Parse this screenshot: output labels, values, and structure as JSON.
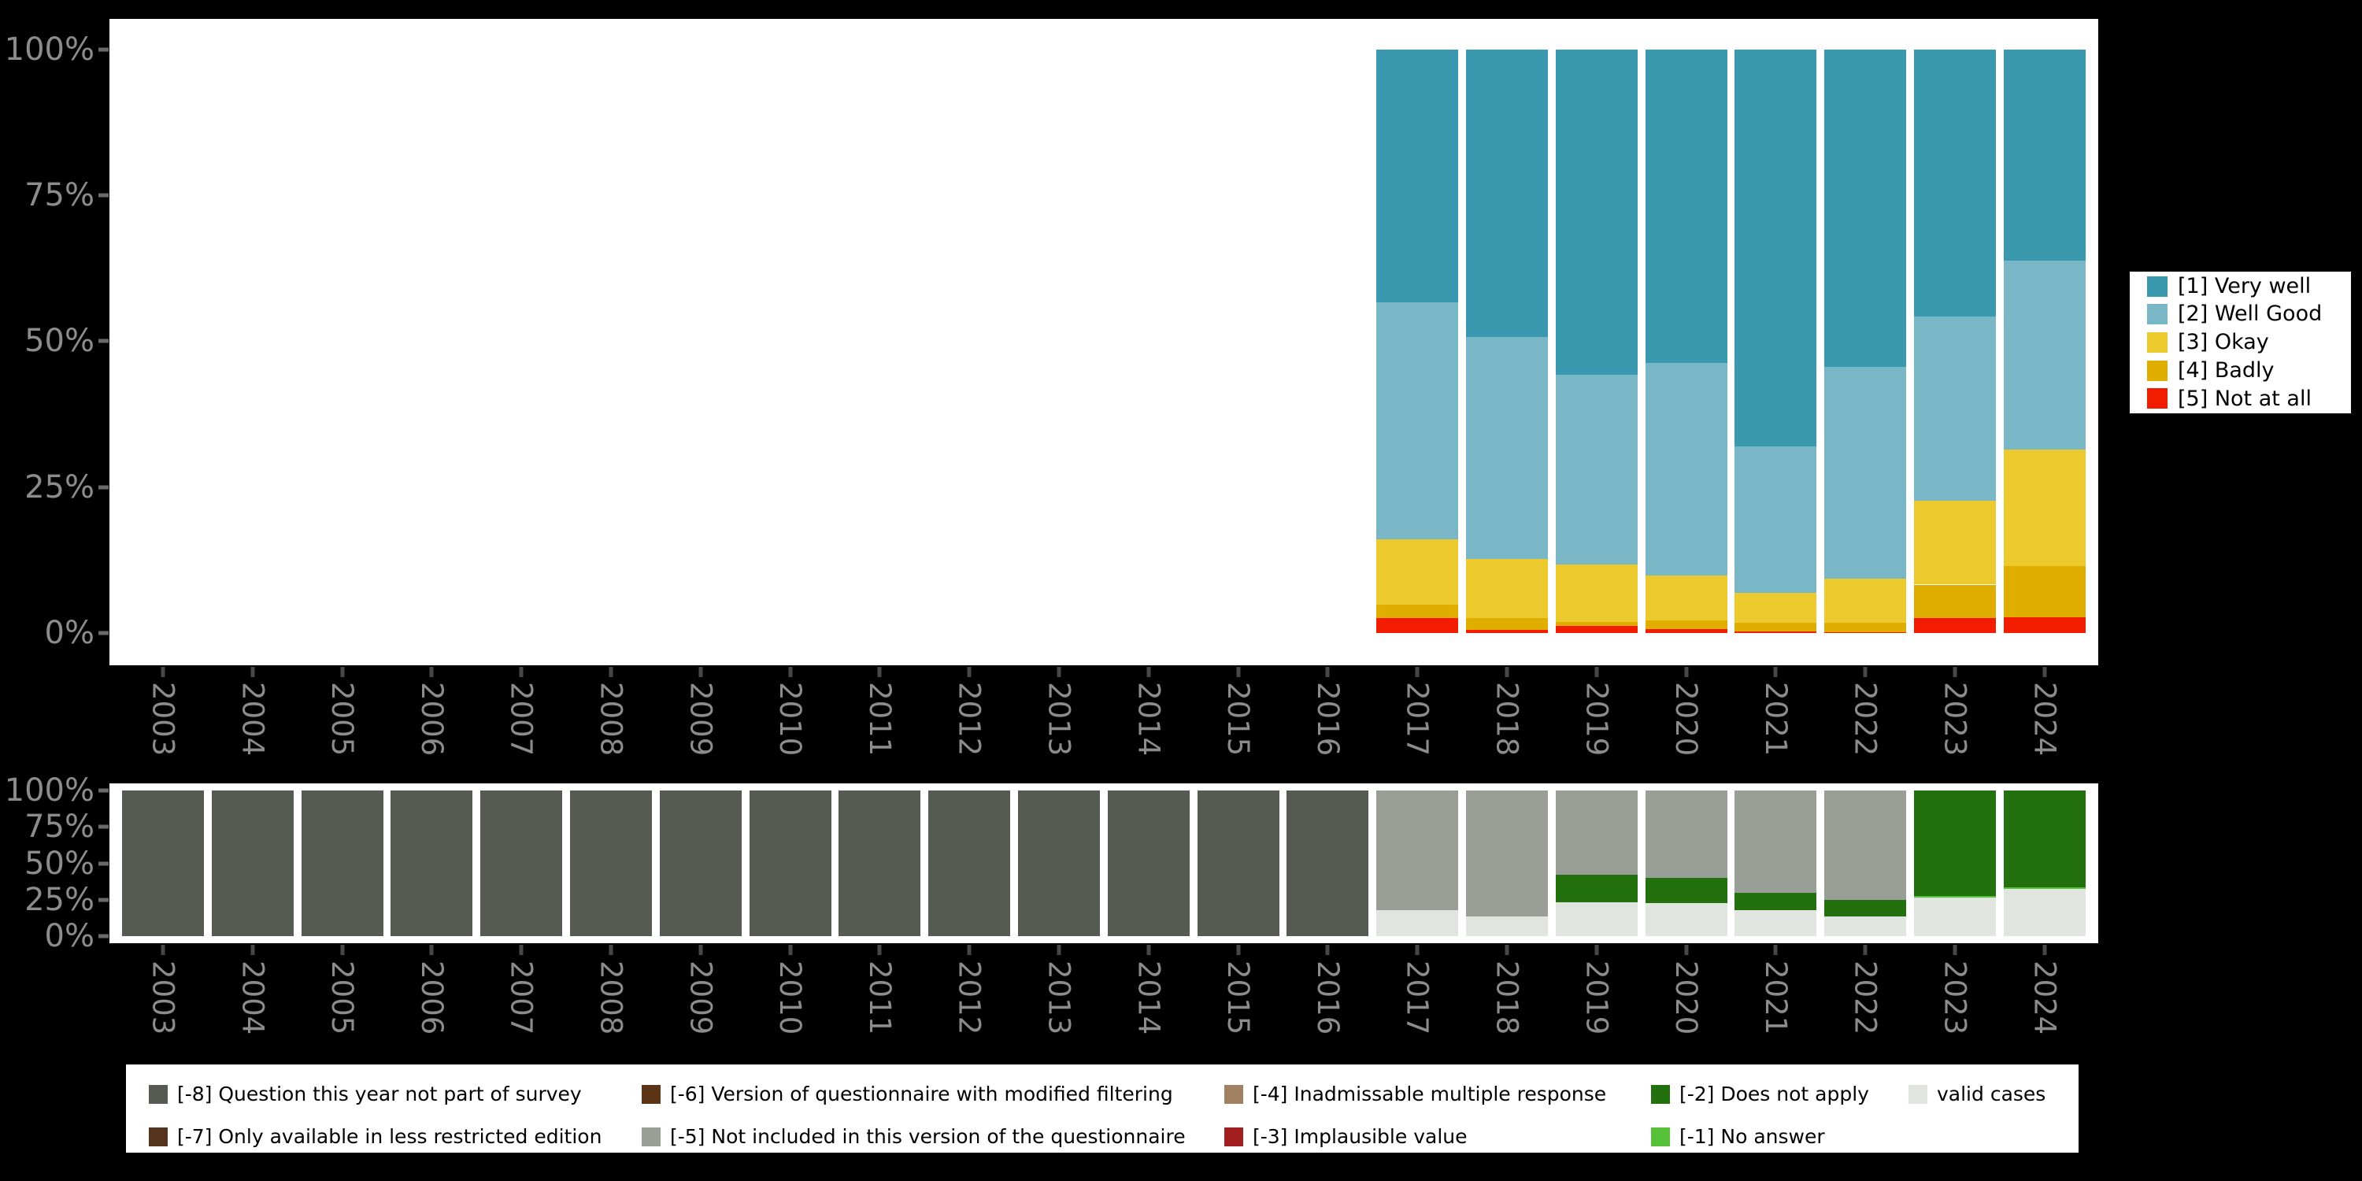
{
  "page": {
    "background": "#000000"
  },
  "palette": {
    "very_well": "#3a99ae",
    "well_good": "#7ab7c6",
    "okay": "#ecca2d",
    "badly": "#dfae00",
    "not_at_all": "#f21d00",
    "m8": "#555b53",
    "m7": "#54341c",
    "m6": "#5b3418",
    "m5": "#999e96",
    "m4": "#a08162",
    "m3": "#a32020",
    "m2": "#23700f",
    "m1": "#57c13a",
    "valid": "#e1e5df",
    "axis_text": "#8c8c8c",
    "plot_bg": "#ffffff"
  },
  "axes": {
    "y_tick_labels": [
      "100%",
      "75%",
      "50%",
      "25%",
      "0%"
    ],
    "years": [
      "2003",
      "2004",
      "2005",
      "2006",
      "2007",
      "2008",
      "2009",
      "2010",
      "2011",
      "2012",
      "2013",
      "2014",
      "2015",
      "2016",
      "2017",
      "2018",
      "2019",
      "2020",
      "2021",
      "2022",
      "2023",
      "2024"
    ]
  },
  "top_legend": {
    "items": [
      {
        "label": "[1] Very well",
        "color": "very_well"
      },
      {
        "label": "[2] Well Good",
        "color": "well_good"
      },
      {
        "label": "[3] Okay",
        "color": "okay"
      },
      {
        "label": "[4] Badly",
        "color": "badly"
      },
      {
        "label": "[5] Not at all",
        "color": "not_at_all"
      }
    ]
  },
  "bottom_legend": {
    "items": [
      {
        "row": 0,
        "col": 0,
        "label": "[-8] Question this year not part of survey",
        "color": "m8"
      },
      {
        "row": 1,
        "col": 0,
        "label": "[-7] Only available in less restricted edition",
        "color": "m7"
      },
      {
        "row": 0,
        "col": 1,
        "label": "[-6] Version of questionnaire with modified filtering",
        "color": "m6"
      },
      {
        "row": 1,
        "col": 1,
        "label": "[-5] Not included in this version of the questionnaire",
        "color": "m5"
      },
      {
        "row": 0,
        "col": 2,
        "label": "[-4] Inadmissable multiple response",
        "color": "m4"
      },
      {
        "row": 1,
        "col": 2,
        "label": "[-3] Implausible value",
        "color": "m3"
      },
      {
        "row": 0,
        "col": 3,
        "label": "[-2] Does not apply",
        "color": "m2"
      },
      {
        "row": 1,
        "col": 3,
        "label": "[-1] No answer",
        "color": "m1"
      },
      {
        "row": 0,
        "col": 4,
        "label": "valid cases",
        "color": "valid"
      }
    ]
  },
  "chart_data": [
    {
      "type": "bar",
      "stacked": true,
      "title": "",
      "ylabel": "",
      "xlabel": "",
      "ylim": [
        0,
        100
      ],
      "y_ticks": [
        "0%",
        "25%",
        "50%",
        "75%",
        "100%"
      ],
      "grid": false,
      "legend_position": "right",
      "x_axis_categories_shown": [
        "2003",
        "2004",
        "2005",
        "2006",
        "2007",
        "2008",
        "2009",
        "2010",
        "2011",
        "2012",
        "2013",
        "2014",
        "2015",
        "2016",
        "2017",
        "2018",
        "2019",
        "2020",
        "2021",
        "2022",
        "2023",
        "2024"
      ],
      "categories": [
        "2017",
        "2018",
        "2019",
        "2020",
        "2021",
        "2022",
        "2023",
        "2024"
      ],
      "series": [
        {
          "name": "[1] Very well",
          "color": "very_well",
          "values": [
            43.3,
            49.2,
            55.7,
            53.7,
            68.0,
            54.4,
            45.7,
            36.2
          ]
        },
        {
          "name": "[2] Well Good",
          "color": "well_good",
          "values": [
            40.7,
            38.1,
            32.6,
            36.4,
            25.1,
            36.3,
            31.6,
            32.3
          ]
        },
        {
          "name": "[3] Okay",
          "color": "okay",
          "values": [
            11.1,
            10.2,
            9.8,
            7.7,
            5.2,
            7.5,
            14.4,
            20.0
          ]
        },
        {
          "name": "[4] Badly",
          "color": "badly",
          "values": [
            2.3,
            1.9,
            0.7,
            1.5,
            1.4,
            1.6,
            5.8,
            8.8
          ]
        },
        {
          "name": "[5] Not at all",
          "color": "not_at_all",
          "values": [
            2.6,
            0.6,
            1.2,
            0.7,
            0.3,
            0.2,
            2.5,
            2.7
          ]
        }
      ]
    },
    {
      "type": "bar",
      "stacked": true,
      "title": "",
      "ylabel": "",
      "xlabel": "",
      "ylim": [
        0,
        100
      ],
      "y_ticks": [
        "0%",
        "25%",
        "50%",
        "75%",
        "100%"
      ],
      "grid": false,
      "legend_position": "bottom",
      "categories": [
        "2003",
        "2004",
        "2005",
        "2006",
        "2007",
        "2008",
        "2009",
        "2010",
        "2011",
        "2012",
        "2013",
        "2014",
        "2015",
        "2016",
        "2017",
        "2018",
        "2019",
        "2020",
        "2021",
        "2022",
        "2023",
        "2024"
      ],
      "series": [
        {
          "name": "[-8] Question this year not part of survey",
          "color": "m8",
          "values": [
            100,
            100,
            100,
            100,
            100,
            100,
            100,
            100,
            100,
            100,
            100,
            100,
            100,
            100,
            0,
            0,
            0,
            0,
            0,
            0,
            0,
            0
          ]
        },
        {
          "name": "[-5] Not included in this version of the questionnaire",
          "color": "m5",
          "values": [
            0,
            0,
            0,
            0,
            0,
            0,
            0,
            0,
            0,
            0,
            0,
            0,
            0,
            0,
            82.4,
            86.7,
            57.6,
            60.1,
            70.0,
            75.0,
            0,
            0
          ]
        },
        {
          "name": "[-2] Does not apply",
          "color": "m2",
          "values": [
            0,
            0,
            0,
            0,
            0,
            0,
            0,
            0,
            0,
            0,
            0,
            0,
            0,
            0,
            0,
            0,
            19.2,
            17.4,
            12.4,
            11.7,
            72.5,
            66.3
          ]
        },
        {
          "name": "[-1] No answer",
          "color": "m1",
          "values": [
            0,
            0,
            0,
            0,
            0,
            0,
            0,
            0,
            0,
            0,
            0,
            0,
            0,
            0,
            0,
            0,
            0,
            0,
            0,
            0,
            1.1,
            1.1
          ]
        },
        {
          "name": "valid cases",
          "color": "valid",
          "values": [
            0,
            0,
            0,
            0,
            0,
            0,
            0,
            0,
            0,
            0,
            0,
            0,
            0,
            0,
            17.6,
            13.3,
            23.2,
            22.5,
            17.6,
            13.3,
            26.4,
            32.6
          ]
        }
      ]
    }
  ]
}
